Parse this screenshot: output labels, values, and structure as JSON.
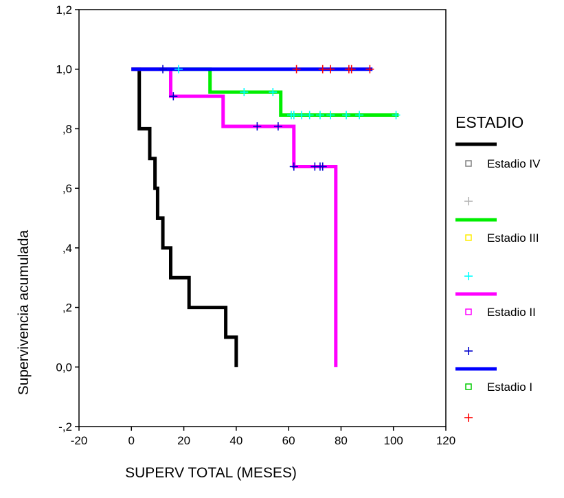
{
  "chart_data": {
    "type": "line",
    "subtype": "kaplan-meier survival step plot",
    "title": "",
    "xlabel": "SUPERV TOTAL (MESES)",
    "ylabel": "Supervivencia acumulada",
    "xlim": [
      -20,
      120
    ],
    "ylim": [
      -0.2,
      1.2
    ],
    "x_ticks": [
      -20,
      0,
      20,
      40,
      60,
      80,
      100,
      120
    ],
    "x_tick_labels": [
      "-20",
      "0",
      "20",
      "40",
      "60",
      "80",
      "100",
      "120"
    ],
    "y_ticks": [
      -0.2,
      0.0,
      0.2,
      0.4,
      0.6,
      0.8,
      1.0,
      1.2
    ],
    "y_tick_labels": [
      "-,2",
      "0,0",
      ",2",
      ",4",
      ",6",
      ",8",
      "1,0",
      "1,2"
    ],
    "grid": false,
    "legend": {
      "title": "ESTADIO",
      "placement": "right",
      "entries": [
        {
          "kind": "line",
          "color": "#000000",
          "label": ""
        },
        {
          "kind": "square",
          "color": "#808080",
          "label": "Estadio IV"
        },
        {
          "kind": "plus",
          "color": "#b4b4b4",
          "label": ""
        },
        {
          "kind": "line",
          "color": "#00ee00",
          "label": ""
        },
        {
          "kind": "square",
          "color": "#ffee00",
          "label": "Estadio III"
        },
        {
          "kind": "plus",
          "color": "#00ffff",
          "label": ""
        },
        {
          "kind": "line",
          "color": "#ff00ff",
          "label": ""
        },
        {
          "kind": "square",
          "color": "#ff00ff",
          "label": "Estadio II"
        },
        {
          "kind": "plus",
          "color": "#0000cc",
          "label": ""
        },
        {
          "kind": "line",
          "color": "#0000ff",
          "label": ""
        },
        {
          "kind": "square",
          "color": "#00cc00",
          "label": "Estadio I"
        },
        {
          "kind": "plus",
          "color": "#ff0000",
          "label": ""
        }
      ]
    },
    "series": [
      {
        "name": "Estadio IV",
        "color": "#000000",
        "censor_color": "#b4b4b4",
        "steps": [
          [
            0,
            1.0
          ],
          [
            3,
            0.8
          ],
          [
            7,
            0.7
          ],
          [
            9,
            0.6
          ],
          [
            10,
            0.5
          ],
          [
            12,
            0.4
          ],
          [
            15,
            0.3
          ],
          [
            22,
            0.2
          ],
          [
            36,
            0.1
          ],
          [
            40,
            0.0
          ]
        ],
        "censored": []
      },
      {
        "name": "Estadio III",
        "color": "#00ee00",
        "censor_color": "#00ffff",
        "steps": [
          [
            0,
            1.0
          ],
          [
            30,
            0.923
          ],
          [
            57,
            0.846
          ],
          [
            102,
            0.846
          ]
        ],
        "censored": [
          [
            18,
            1.0
          ],
          [
            43,
            0.923
          ],
          [
            54,
            0.923
          ],
          [
            61,
            0.846
          ],
          [
            62,
            0.846
          ],
          [
            65,
            0.846
          ],
          [
            68,
            0.846
          ],
          [
            72,
            0.846
          ],
          [
            76,
            0.846
          ],
          [
            82,
            0.846
          ],
          [
            87,
            0.846
          ],
          [
            101,
            0.846
          ]
        ]
      },
      {
        "name": "Estadio II",
        "color": "#ff00ff",
        "censor_color": "#0000cc",
        "steps": [
          [
            0,
            1.0
          ],
          [
            15,
            0.909
          ],
          [
            35,
            0.808
          ],
          [
            62,
            0.673
          ],
          [
            78,
            0.0
          ]
        ],
        "censored": [
          [
            12,
            1.0
          ],
          [
            16,
            0.909
          ],
          [
            48,
            0.808
          ],
          [
            56,
            0.808
          ],
          [
            62,
            0.673
          ],
          [
            70,
            0.673
          ],
          [
            72,
            0.673
          ],
          [
            73,
            0.673
          ]
        ]
      },
      {
        "name": "Estadio I",
        "color": "#0000ff",
        "censor_color": "#ff0000",
        "steps": [
          [
            0,
            1.0
          ],
          [
            92,
            1.0
          ]
        ],
        "censored": [
          [
            63,
            1.0
          ],
          [
            73,
            1.0
          ],
          [
            76,
            1.0
          ],
          [
            83,
            1.0
          ],
          [
            84,
            1.0
          ],
          [
            91,
            1.0
          ]
        ]
      }
    ]
  }
}
